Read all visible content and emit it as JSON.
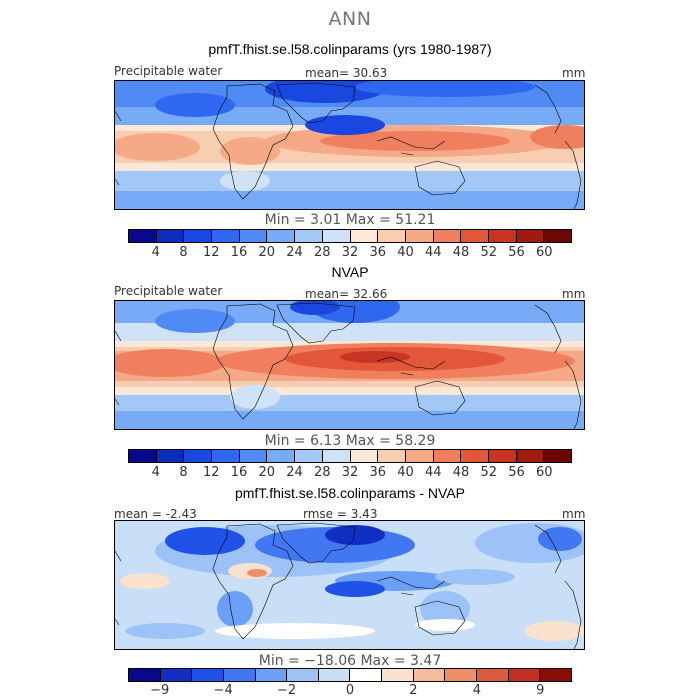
{
  "figure": {
    "title": "ANN"
  },
  "panels": [
    {
      "title": "pmfT.fhist.se.l58.colinparams (yrs 1980-1987)",
      "left_label": "Precipitable water",
      "center_label": "mean=   30.63",
      "units": "mm",
      "minmax": "Min =    3.01  Max =   51.21"
    },
    {
      "title": "NVAP",
      "left_label": "Precipitable water",
      "center_label": "mean=   32.66",
      "units": "mm",
      "minmax": "Min =    6.13  Max =   58.29"
    },
    {
      "title": "pmfT.fhist.se.l58.colinparams - NVAP",
      "left_label": "mean =   -2.43",
      "center_label": "rmse =    3.43",
      "units": "mm",
      "minmax": "Min = −18.06  Max =    3.47"
    }
  ],
  "colorbars": {
    "abs": {
      "colors": [
        "#08088c",
        "#0d2bbd",
        "#1a47e0",
        "#2f68f0",
        "#4f8af5",
        "#77aaf7",
        "#a3c8f7",
        "#cfe2f7",
        "#fbe8d7",
        "#f9cdb0",
        "#f5a987",
        "#ef7f5e",
        "#e2573a",
        "#c73522",
        "#a01a0e",
        "#6e0606"
      ],
      "ticks": [
        "4",
        "8",
        "12",
        "16",
        "20",
        "24",
        "28",
        "32",
        "36",
        "40",
        "44",
        "48",
        "52",
        "56",
        "60"
      ]
    },
    "diff": {
      "colors": [
        "#08088c",
        "#1030c4",
        "#2052e8",
        "#4277f2",
        "#6c9ff6",
        "#9cc2f7",
        "#c9def7",
        "#ffffff",
        "#fbe2cf",
        "#f6bc9a",
        "#ee8e68",
        "#de5a3c",
        "#c13020",
        "#8a0d08"
      ],
      "ticks": [
        {
          "label": "−9",
          "pos": 1
        },
        {
          "label": "−4",
          "pos": 3
        },
        {
          "label": "−2",
          "pos": 5
        },
        {
          "label": "0",
          "pos": 7
        },
        {
          "label": "2",
          "pos": 9
        },
        {
          "label": "4",
          "pos": 11
        },
        {
          "label": "9",
          "pos": 13
        }
      ]
    }
  },
  "chart_data": [
    {
      "type": "heatmap",
      "title": "pmfT.fhist.se.l58.colinparams (yrs 1980-1987)",
      "variable": "Precipitable water",
      "units": "mm",
      "mean": 30.63,
      "min": 3.01,
      "max": 51.21,
      "contour_levels": [
        4,
        8,
        12,
        16,
        20,
        24,
        28,
        32,
        36,
        40,
        44,
        48,
        52,
        56,
        60
      ]
    },
    {
      "type": "heatmap",
      "title": "NVAP",
      "variable": "Precipitable water",
      "units": "mm",
      "mean": 32.66,
      "min": 6.13,
      "max": 58.29,
      "contour_levels": [
        4,
        8,
        12,
        16,
        20,
        24,
        28,
        32,
        36,
        40,
        44,
        48,
        52,
        56,
        60
      ]
    },
    {
      "type": "heatmap",
      "title": "pmfT.fhist.se.l58.colinparams - NVAP",
      "units": "mm",
      "mean": -2.43,
      "rmse": 3.43,
      "min": -18.06,
      "max": 3.47,
      "contour_levels": [
        -9,
        -4,
        -2,
        0,
        2,
        4,
        9
      ]
    }
  ]
}
